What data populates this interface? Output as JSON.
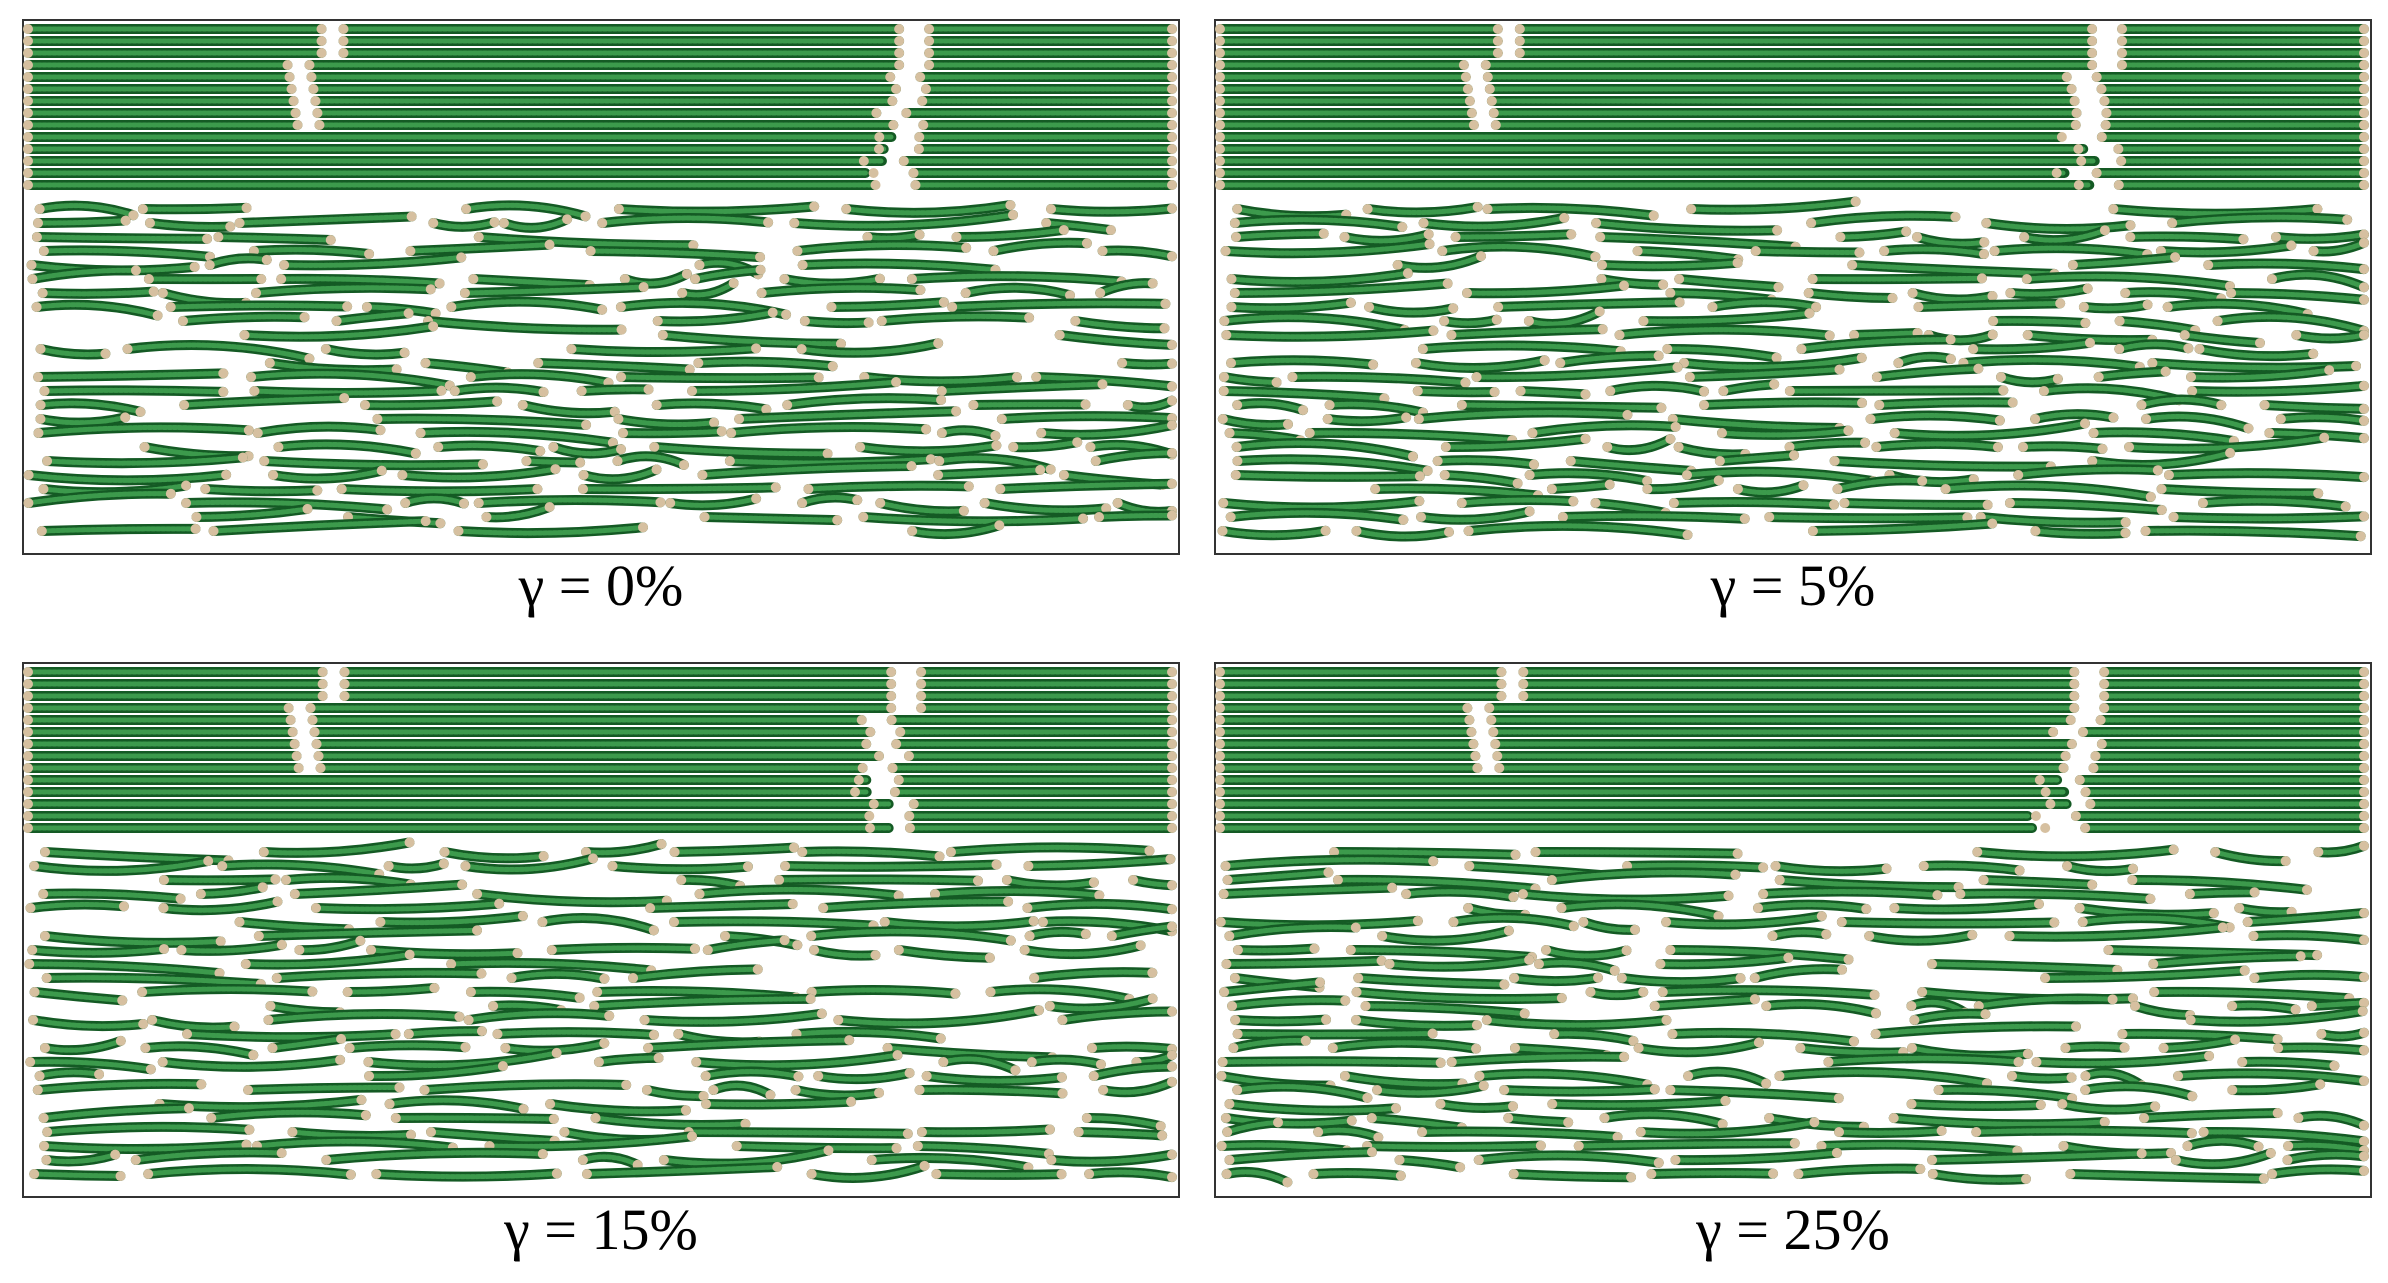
{
  "panels": [
    {
      "caption": "γ = 0%"
    },
    {
      "caption": "γ = 5%"
    },
    {
      "caption": "γ = 15%"
    },
    {
      "caption": "γ = 25%"
    }
  ]
}
